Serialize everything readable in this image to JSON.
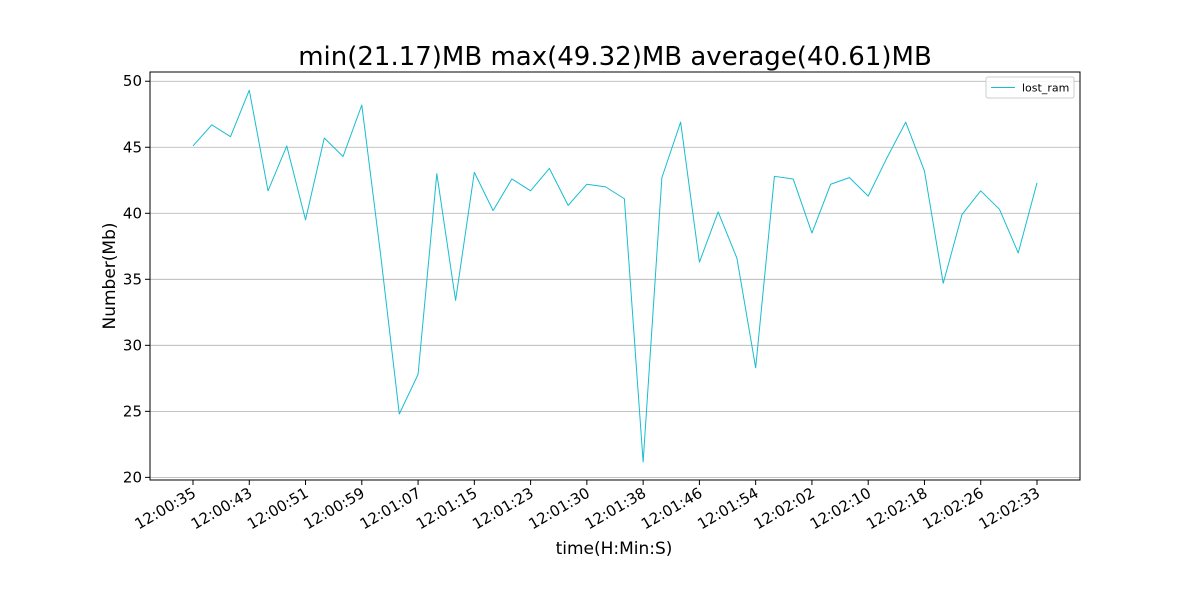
{
  "chart_data": {
    "type": "line",
    "title": "min(21.17)MB max(49.32)MB average(40.61)MB",
    "xlabel": "time(H:Min:S)",
    "ylabel": "Number(Mb)",
    "ylim": [
      19.8,
      50.7
    ],
    "yticks": [
      20,
      25,
      30,
      35,
      40,
      45,
      50
    ],
    "grid": "horizontal",
    "legend_position": "top-right",
    "xticks": [
      {
        "index": 0,
        "label": "12:00:35"
      },
      {
        "index": 3,
        "label": "12:00:43"
      },
      {
        "index": 6,
        "label": "12:00:51"
      },
      {
        "index": 9,
        "label": "12:00:59"
      },
      {
        "index": 12,
        "label": "12:01:07"
      },
      {
        "index": 15,
        "label": "12:01:15"
      },
      {
        "index": 18,
        "label": "12:01:23"
      },
      {
        "index": 21,
        "label": "12:01:30"
      },
      {
        "index": 24,
        "label": "12:01:38"
      },
      {
        "index": 27,
        "label": "12:01:46"
      },
      {
        "index": 30,
        "label": "12:01:54"
      },
      {
        "index": 33,
        "label": "12:02:02"
      },
      {
        "index": 36,
        "label": "12:02:10"
      },
      {
        "index": 39,
        "label": "12:02:18"
      },
      {
        "index": 42,
        "label": "12:02:26"
      },
      {
        "index": 45,
        "label": "12:02:33"
      }
    ],
    "series": [
      {
        "name": "lost_ram",
        "color": "#17becf",
        "values": [
          45.1,
          46.7,
          45.8,
          49.32,
          41.7,
          45.1,
          39.5,
          45.7,
          44.3,
          48.2,
          36.9,
          24.8,
          27.8,
          43.0,
          33.4,
          43.1,
          40.2,
          42.6,
          41.7,
          43.4,
          40.6,
          42.2,
          42.0,
          41.1,
          21.17,
          42.7,
          46.9,
          36.3,
          40.1,
          36.6,
          28.3,
          42.8,
          42.6,
          38.5,
          42.2,
          42.7,
          41.3,
          44.2,
          46.9,
          43.2,
          34.7,
          39.9,
          41.7,
          40.3,
          37.0,
          42.3
        ]
      }
    ]
  }
}
